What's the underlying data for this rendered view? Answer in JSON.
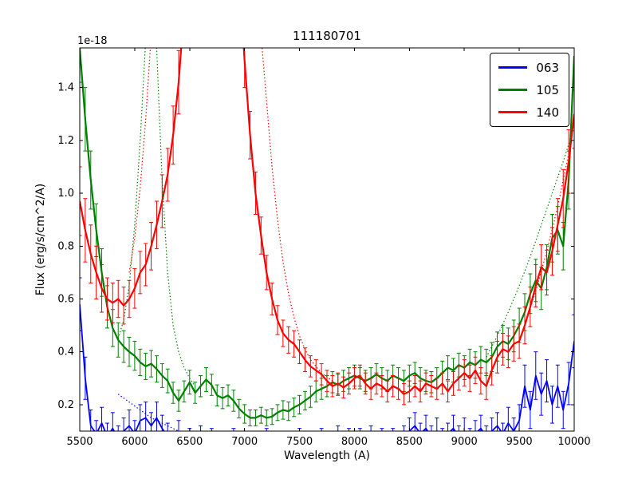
{
  "chart_data": {
    "type": "line",
    "title": "111180701",
    "xlabel": "Wavelength (A)",
    "ylabel": "Flux (erg/s/cm^2/A)",
    "y_offset_label": "1e-18",
    "xlim": [
      5500,
      10000
    ],
    "ylim": [
      0.1,
      1.55
    ],
    "xticks": [
      5500,
      6000,
      6500,
      7000,
      7500,
      8000,
      8500,
      9000,
      9500,
      10000
    ],
    "yticks": [
      0.2,
      0.4,
      0.6,
      0.8,
      1.0,
      1.2,
      1.4
    ],
    "grid": false,
    "legend_position": "upper right",
    "error_bars": true,
    "series": [
      {
        "name": "063",
        "color": "#0000ff",
        "style": "solid",
        "linewidth": 1.8,
        "legend": true,
        "x_start": 5500,
        "x_step": 50,
        "y": [
          0.58,
          0.3,
          0.12,
          0.09,
          0.13,
          0.08,
          0.11,
          0.07,
          0.1,
          0.12,
          0.09,
          0.14,
          0.15,
          0.12,
          0.15,
          0.11,
          0.08,
          0.06,
          0.09,
          0.05,
          0.07,
          0.06,
          0.08,
          0.05,
          0.07,
          0.04,
          0.06,
          0.05,
          0.07,
          0.05,
          0.06,
          0.04,
          0.06,
          0.05,
          0.07,
          0.05,
          0.06,
          0.04,
          0.06,
          0.05,
          0.07,
          0.05,
          0.06,
          0.05,
          0.07,
          0.05,
          0.06,
          0.08,
          0.06,
          0.07,
          0.05,
          0.07,
          0.06,
          0.08,
          0.06,
          0.07,
          0.05,
          0.07,
          0.06,
          0.08,
          0.1,
          0.12,
          0.09,
          0.11,
          0.08,
          0.1,
          0.07,
          0.09,
          0.11,
          0.08,
          0.1,
          0.07,
          0.09,
          0.11,
          0.08,
          0.1,
          0.12,
          0.09,
          0.13,
          0.1,
          0.14,
          0.27,
          0.18,
          0.31,
          0.24,
          0.29,
          0.2,
          0.27,
          0.18,
          0.28,
          0.44
        ],
        "yerr": [
          0.1,
          0.08,
          0.06,
          0.05,
          0.06,
          0.05,
          0.06,
          0.05,
          0.05,
          0.06,
          0.05,
          0.06,
          0.06,
          0.05,
          0.06,
          0.05,
          0.05,
          0.04,
          0.05,
          0.04,
          0.04,
          0.04,
          0.04,
          0.04,
          0.04,
          0.04,
          0.04,
          0.04,
          0.04,
          0.04,
          0.04,
          0.04,
          0.04,
          0.04,
          0.04,
          0.04,
          0.04,
          0.04,
          0.04,
          0.04,
          0.04,
          0.04,
          0.04,
          0.04,
          0.04,
          0.04,
          0.04,
          0.04,
          0.04,
          0.04,
          0.04,
          0.04,
          0.04,
          0.04,
          0.04,
          0.04,
          0.04,
          0.04,
          0.04,
          0.04,
          0.05,
          0.05,
          0.04,
          0.05,
          0.04,
          0.05,
          0.04,
          0.04,
          0.05,
          0.04,
          0.05,
          0.04,
          0.05,
          0.05,
          0.04,
          0.05,
          0.05,
          0.04,
          0.06,
          0.05,
          0.06,
          0.08,
          0.07,
          0.09,
          0.08,
          0.08,
          0.07,
          0.08,
          0.07,
          0.08,
          0.1
        ]
      },
      {
        "name": "105",
        "color": "#008000",
        "style": "solid",
        "linewidth": 2.2,
        "legend": true,
        "x_start": 5500,
        "x_step": 50,
        "y": [
          1.55,
          1.28,
          1.05,
          0.86,
          0.7,
          0.57,
          0.49,
          0.445,
          0.42,
          0.4,
          0.385,
          0.36,
          0.345,
          0.355,
          0.335,
          0.31,
          0.29,
          0.245,
          0.215,
          0.25,
          0.285,
          0.245,
          0.27,
          0.295,
          0.275,
          0.235,
          0.225,
          0.235,
          0.215,
          0.185,
          0.165,
          0.15,
          0.15,
          0.16,
          0.15,
          0.155,
          0.17,
          0.18,
          0.175,
          0.19,
          0.2,
          0.215,
          0.23,
          0.25,
          0.26,
          0.27,
          0.285,
          0.275,
          0.29,
          0.3,
          0.31,
          0.3,
          0.29,
          0.3,
          0.315,
          0.3,
          0.29,
          0.31,
          0.3,
          0.29,
          0.31,
          0.32,
          0.3,
          0.29,
          0.285,
          0.3,
          0.32,
          0.34,
          0.33,
          0.35,
          0.34,
          0.36,
          0.35,
          0.37,
          0.36,
          0.38,
          0.42,
          0.44,
          0.43,
          0.46,
          0.5,
          0.55,
          0.62,
          0.67,
          0.64,
          0.72,
          0.83,
          0.86,
          0.8,
          1.05,
          1.52
        ],
        "yerr": [
          0.13,
          0.12,
          0.11,
          0.1,
          0.09,
          0.08,
          0.07,
          0.065,
          0.06,
          0.055,
          0.055,
          0.05,
          0.05,
          0.05,
          0.05,
          0.045,
          0.045,
          0.04,
          0.04,
          0.04,
          0.045,
          0.04,
          0.04,
          0.045,
          0.04,
          0.04,
          0.04,
          0.04,
          0.04,
          0.035,
          0.035,
          0.03,
          0.03,
          0.03,
          0.03,
          0.03,
          0.03,
          0.035,
          0.035,
          0.035,
          0.035,
          0.035,
          0.04,
          0.04,
          0.04,
          0.04,
          0.04,
          0.04,
          0.04,
          0.04,
          0.04,
          0.04,
          0.04,
          0.04,
          0.04,
          0.04,
          0.04,
          0.04,
          0.04,
          0.04,
          0.04,
          0.04,
          0.04,
          0.04,
          0.04,
          0.04,
          0.045,
          0.045,
          0.045,
          0.045,
          0.045,
          0.05,
          0.05,
          0.05,
          0.05,
          0.055,
          0.055,
          0.06,
          0.06,
          0.06,
          0.065,
          0.07,
          0.075,
          0.08,
          0.08,
          0.085,
          0.09,
          0.09,
          0.09,
          0.11,
          0.13
        ]
      },
      {
        "name": "140",
        "color": "#ff0000",
        "style": "solid",
        "linewidth": 2.2,
        "legend": true,
        "x_start": 5500,
        "x_step": 50,
        "y": [
          0.97,
          0.86,
          0.77,
          0.7,
          0.64,
          0.6,
          0.585,
          0.6,
          0.575,
          0.6,
          0.64,
          0.7,
          0.73,
          0.8,
          0.88,
          0.97,
          1.07,
          1.22,
          1.42,
          1.7,
          2.2,
          2.8,
          3.4,
          3.8,
          4.0,
          3.9,
          3.5,
          2.9,
          2.3,
          1.85,
          1.5,
          1.22,
          1.0,
          0.84,
          0.7,
          0.6,
          0.52,
          0.47,
          0.445,
          0.43,
          0.4,
          0.37,
          0.345,
          0.33,
          0.315,
          0.29,
          0.27,
          0.28,
          0.265,
          0.28,
          0.3,
          0.31,
          0.28,
          0.26,
          0.28,
          0.27,
          0.25,
          0.27,
          0.26,
          0.24,
          0.25,
          0.27,
          0.25,
          0.28,
          0.27,
          0.26,
          0.28,
          0.25,
          0.28,
          0.3,
          0.32,
          0.3,
          0.33,
          0.29,
          0.27,
          0.33,
          0.38,
          0.41,
          0.4,
          0.43,
          0.44,
          0.5,
          0.57,
          0.65,
          0.72,
          0.7,
          0.78,
          0.88,
          0.98,
          1.12,
          1.3
        ],
        "yerr": [
          0.13,
          0.12,
          0.11,
          0.1,
          0.09,
          0.08,
          0.075,
          0.07,
          0.07,
          0.07,
          0.075,
          0.08,
          0.08,
          0.09,
          0.09,
          0.1,
          0.1,
          0.11,
          0.12,
          0.12,
          0.12,
          0.12,
          0.12,
          0.12,
          0.12,
          0.12,
          0.12,
          0.12,
          0.12,
          0.11,
          0.1,
          0.09,
          0.08,
          0.07,
          0.065,
          0.06,
          0.055,
          0.05,
          0.05,
          0.05,
          0.045,
          0.045,
          0.04,
          0.04,
          0.04,
          0.04,
          0.04,
          0.04,
          0.04,
          0.04,
          0.04,
          0.04,
          0.04,
          0.04,
          0.04,
          0.04,
          0.04,
          0.04,
          0.04,
          0.04,
          0.04,
          0.04,
          0.04,
          0.04,
          0.04,
          0.04,
          0.04,
          0.04,
          0.045,
          0.045,
          0.05,
          0.05,
          0.05,
          0.05,
          0.05,
          0.055,
          0.06,
          0.06,
          0.06,
          0.065,
          0.065,
          0.07,
          0.075,
          0.08,
          0.085,
          0.085,
          0.09,
          0.1,
          0.11,
          0.12,
          0.13
        ]
      },
      {
        "name": "063-unsmoothed",
        "color": "#0000ff",
        "style": "dotted",
        "linewidth": 1.2,
        "legend": false,
        "x": [
          5850,
          5950,
          6050,
          6150,
          6250,
          6350,
          6450
        ],
        "y": [
          0.24,
          0.21,
          0.18,
          0.15,
          0.13,
          0.11,
          0.09
        ]
      },
      {
        "name": "105-unsmoothed-left",
        "color": "#008000",
        "style": "dotted",
        "linewidth": 1.2,
        "legend": false,
        "x": [
          5850,
          5900,
          5950,
          6000,
          6050,
          6100,
          6150,
          6200,
          6250,
          6300,
          6350,
          6400,
          6450,
          6500,
          6550
        ],
        "y": [
          0.45,
          0.52,
          0.65,
          0.88,
          1.2,
          1.58,
          2.0,
          1.55,
          1.05,
          0.7,
          0.5,
          0.4,
          0.34,
          0.3,
          0.27
        ]
      },
      {
        "name": "105-unsmoothed-right",
        "color": "#008000",
        "style": "dotted",
        "linewidth": 1.2,
        "legend": false,
        "x": [
          9200,
          9300,
          9400,
          9500,
          9600,
          9700,
          9800,
          9900,
          10000
        ],
        "y": [
          0.38,
          0.46,
          0.55,
          0.65,
          0.76,
          0.88,
          1.0,
          1.12,
          1.25
        ]
      },
      {
        "name": "140-unsmoothed-left",
        "color": "#ff0000",
        "style": "dotted",
        "linewidth": 1.2,
        "legend": false,
        "x": [
          5950,
          6000,
          6050,
          6100,
          6150,
          6500,
          6900,
          7150,
          7200,
          7250,
          7300,
          7350,
          7400,
          7450,
          7500,
          7550,
          7600,
          7700,
          7800
        ],
        "y": [
          0.7,
          0.83,
          1.02,
          1.28,
          1.6,
          3.5,
          3.5,
          1.6,
          1.35,
          1.1,
          0.9,
          0.74,
          0.62,
          0.53,
          0.46,
          0.41,
          0.37,
          0.32,
          0.29
        ]
      },
      {
        "name": "140-unsmoothed-right",
        "color": "#ff0000",
        "style": "dotted",
        "linewidth": 1.2,
        "legend": false,
        "x": [
          9550,
          9650,
          9750,
          9850,
          9950,
          10000
        ],
        "y": [
          0.5,
          0.63,
          0.78,
          0.95,
          1.15,
          1.28
        ]
      }
    ]
  }
}
